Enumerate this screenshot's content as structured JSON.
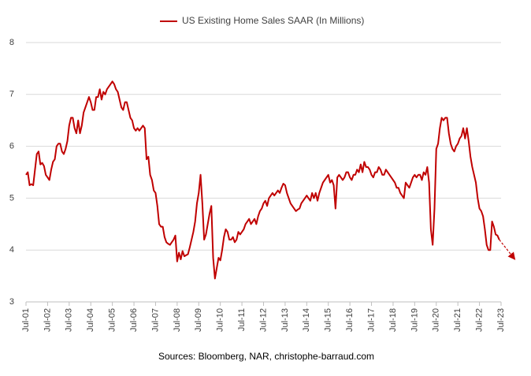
{
  "chart_data": {
    "type": "line",
    "categories": [
      "Jul-01",
      null,
      null,
      null,
      null,
      null,
      null,
      null,
      null,
      null,
      null,
      null,
      "Jul-02",
      null,
      null,
      null,
      null,
      null,
      null,
      null,
      null,
      null,
      null,
      null,
      "Jul-03",
      null,
      null,
      null,
      null,
      null,
      null,
      null,
      null,
      null,
      null,
      null,
      "Jul-04",
      null,
      null,
      null,
      null,
      null,
      null,
      null,
      null,
      null,
      null,
      null,
      "Jul-05",
      null,
      null,
      null,
      null,
      null,
      null,
      null,
      null,
      null,
      null,
      null,
      "Jul-06",
      null,
      null,
      null,
      null,
      null,
      null,
      null,
      null,
      null,
      null,
      null,
      "Jul-07",
      null,
      null,
      null,
      null,
      null,
      null,
      null,
      null,
      null,
      null,
      null,
      "Jul-08",
      null,
      null,
      null,
      null,
      null,
      null,
      null,
      null,
      null,
      null,
      null,
      "Jul-09",
      null,
      null,
      null,
      null,
      null,
      null,
      null,
      null,
      null,
      null,
      null,
      "Jul-10",
      null,
      null,
      null,
      null,
      null,
      null,
      null,
      null,
      null,
      null,
      null,
      "Jul-11",
      null,
      null,
      null,
      null,
      null,
      null,
      null,
      null,
      null,
      null,
      null,
      "Jul-12",
      null,
      null,
      null,
      null,
      null,
      null,
      null,
      null,
      null,
      null,
      null,
      "Jul-13",
      null,
      null,
      null,
      null,
      null,
      null,
      null,
      null,
      null,
      null,
      null,
      "Jul-14",
      null,
      null,
      null,
      null,
      null,
      null,
      null,
      null,
      null,
      null,
      null,
      "Jul-15",
      null,
      null,
      null,
      null,
      null,
      null,
      null,
      null,
      null,
      null,
      null,
      "Jul-16",
      null,
      null,
      null,
      null,
      null,
      null,
      null,
      null,
      null,
      null,
      null,
      "Jul-17",
      null,
      null,
      null,
      null,
      null,
      null,
      null,
      null,
      null,
      null,
      null,
      "Jul-18",
      null,
      null,
      null,
      null,
      null,
      null,
      null,
      null,
      null,
      null,
      null,
      "Jul-19",
      null,
      null,
      null,
      null,
      null,
      null,
      null,
      null,
      null,
      null,
      null,
      "Jul-20",
      null,
      null,
      null,
      null,
      null,
      null,
      null,
      null,
      null,
      null,
      null,
      "Jul-21",
      null,
      null,
      null,
      null,
      null,
      null,
      null,
      null,
      null,
      null,
      null,
      "Jul-22",
      null,
      null,
      null,
      null,
      null,
      null,
      null,
      null,
      null,
      null,
      null,
      "Jul-23"
    ],
    "series": [
      {
        "name": "US Existing Home Sales SAAR (In Millions)",
        "color": "#c00000",
        "values": [
          5.45,
          5.5,
          5.25,
          5.27,
          5.25,
          5.55,
          5.85,
          5.9,
          5.65,
          5.68,
          5.62,
          5.45,
          5.4,
          5.35,
          5.55,
          5.7,
          5.75,
          6.0,
          6.05,
          6.05,
          5.9,
          5.85,
          5.95,
          6.1,
          6.4,
          6.55,
          6.55,
          6.35,
          6.25,
          6.5,
          6.25,
          6.4,
          6.65,
          6.75,
          6.85,
          6.95,
          6.85,
          6.7,
          6.7,
          6.95,
          6.95,
          7.1,
          6.9,
          7.05,
          7.0,
          7.1,
          7.15,
          7.2,
          7.25,
          7.2,
          7.1,
          7.05,
          6.9,
          6.75,
          6.7,
          6.85,
          6.85,
          6.7,
          6.55,
          6.5,
          6.35,
          6.3,
          6.35,
          6.3,
          6.35,
          6.4,
          6.35,
          5.75,
          5.8,
          5.45,
          5.35,
          5.15,
          5.1,
          4.85,
          4.5,
          4.45,
          4.45,
          4.25,
          4.15,
          4.12,
          4.1,
          4.15,
          4.2,
          4.28,
          3.78,
          3.95,
          3.82,
          3.98,
          3.88,
          3.9,
          3.92,
          4.05,
          4.2,
          4.35,
          4.55,
          4.9,
          5.1,
          5.45,
          4.9,
          4.2,
          4.3,
          4.5,
          4.7,
          4.85,
          3.85,
          3.45,
          3.65,
          3.85,
          3.8,
          4.0,
          4.25,
          4.4,
          4.35,
          4.2,
          4.2,
          4.25,
          4.15,
          4.2,
          4.35,
          4.3,
          4.35,
          4.4,
          4.5,
          4.55,
          4.6,
          4.5,
          4.55,
          4.6,
          4.5,
          4.65,
          4.75,
          4.8,
          4.9,
          4.95,
          4.85,
          5.0,
          5.05,
          5.1,
          5.05,
          5.1,
          5.15,
          5.1,
          5.2,
          5.28,
          5.25,
          5.1,
          5.0,
          4.9,
          4.85,
          4.8,
          4.75,
          4.78,
          4.8,
          4.9,
          4.95,
          5.0,
          5.05,
          5.0,
          4.95,
          5.1,
          5.0,
          5.1,
          4.95,
          5.1,
          5.2,
          5.3,
          5.35,
          5.4,
          5.45,
          5.3,
          5.35,
          5.25,
          4.8,
          5.4,
          5.45,
          5.4,
          5.35,
          5.4,
          5.5,
          5.5,
          5.4,
          5.35,
          5.45,
          5.45,
          5.55,
          5.5,
          5.65,
          5.5,
          5.7,
          5.6,
          5.6,
          5.55,
          5.45,
          5.4,
          5.5,
          5.5,
          5.6,
          5.55,
          5.45,
          5.45,
          5.55,
          5.5,
          5.45,
          5.4,
          5.35,
          5.3,
          5.2,
          5.2,
          5.1,
          5.05,
          5.0,
          5.3,
          5.25,
          5.2,
          5.3,
          5.4,
          5.45,
          5.4,
          5.45,
          5.45,
          5.35,
          5.5,
          5.45,
          5.6,
          5.3,
          4.4,
          4.1,
          4.8,
          5.95,
          6.05,
          6.35,
          6.55,
          6.5,
          6.55,
          6.55,
          6.25,
          6.05,
          5.95,
          5.9,
          6.0,
          6.05,
          6.15,
          6.2,
          6.35,
          6.15,
          6.35,
          6.1,
          5.8,
          5.6,
          5.45,
          5.3,
          5.0,
          4.8,
          4.75,
          4.65,
          4.4,
          4.1,
          4.0,
          4.0,
          4.55,
          4.45,
          4.3,
          4.28,
          4.2,
          null
        ]
      }
    ],
    "ylim": [
      3,
      8
    ],
    "yticks": [
      3,
      4,
      5,
      6,
      7,
      8
    ],
    "grid": true,
    "source": "Sources: Bloomberg, NAR, christophe-barraud.com"
  }
}
